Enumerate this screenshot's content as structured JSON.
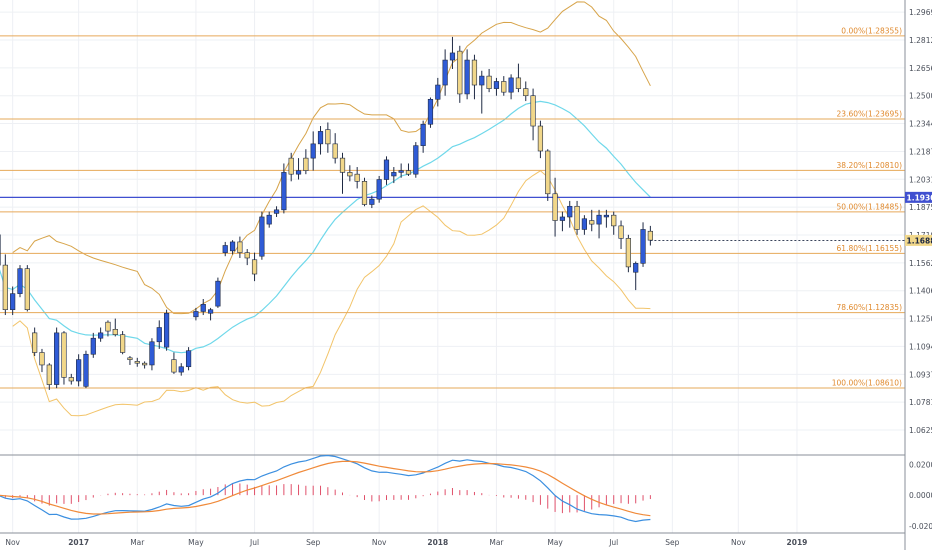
{
  "chart_data": {
    "type": "candlestick",
    "title": "",
    "xlabel": "",
    "ylabel": "",
    "ylim": [
      1.0485,
      1.2992
    ],
    "price_ticks": [
      "1.29690",
      "1.28125",
      "1.26565",
      "1.25000",
      "1.23440",
      "1.21875",
      "1.20315",
      "1.18750",
      "1.17190",
      "1.15625",
      "1.14065",
      "1.12500",
      "1.10940",
      "1.09375",
      "1.07815",
      "1.06250"
    ],
    "time_labels": [
      {
        "label": "Nov",
        "week": 2
      },
      {
        "label": "2017",
        "week": 11
      },
      {
        "label": "Mar",
        "week": 19
      },
      {
        "label": "May",
        "week": 27
      },
      {
        "label": "Jul",
        "week": 35
      },
      {
        "label": "Sep",
        "week": 43
      },
      {
        "label": "Nov",
        "week": 52
      },
      {
        "label": "2018",
        "week": 60
      },
      {
        "label": "Mar",
        "week": 68
      },
      {
        "label": "May",
        "week": 76
      },
      {
        "label": "Jul",
        "week": 84
      },
      {
        "label": "Sep",
        "week": 92
      },
      {
        "label": "Nov",
        "week": 101
      },
      {
        "label": "2019",
        "week": 109
      }
    ],
    "fib_levels": [
      {
        "label": "0.00%(1.28355)",
        "value": 1.28355
      },
      {
        "label": "23.60%(1.23695)",
        "value": 1.23695
      },
      {
        "label": "38.20%(1.20810)",
        "value": 1.2081
      },
      {
        "label": "50.00%(1.18485)",
        "value": 1.18485
      },
      {
        "label": "61.80%(1.16155)",
        "value": 1.16155
      },
      {
        "label": "78.60%(1.12835)",
        "value": 1.12835
      },
      {
        "label": "100.00%(1.08610)",
        "value": 1.0861
      }
    ],
    "horizontal_line": {
      "value": 1.193,
      "label": "1.19300"
    },
    "last_price": {
      "value": 1.16885,
      "label": "1.16885"
    },
    "candles": [
      [
        1.172,
        1.176,
        1.145,
        1.155
      ],
      [
        1.155,
        1.161,
        1.127,
        1.13
      ],
      [
        1.13,
        1.143,
        1.127,
        1.139
      ],
      [
        1.139,
        1.155,
        1.137,
        1.153
      ],
      [
        1.153,
        1.155,
        1.129,
        1.13
      ],
      [
        1.117,
        1.12,
        1.104,
        1.106
      ],
      [
        1.106,
        1.108,
        1.095,
        1.099
      ],
      [
        1.099,
        1.1,
        1.085,
        1.088
      ],
      [
        1.088,
        1.12,
        1.086,
        1.117
      ],
      [
        1.117,
        1.118,
        1.088,
        1.092
      ],
      [
        1.092,
        1.094,
        1.088,
        1.09
      ],
      [
        1.09,
        1.105,
        1.087,
        1.102
      ],
      [
        1.087,
        1.107,
        1.086,
        1.105
      ],
      [
        1.105,
        1.117,
        1.103,
        1.114
      ],
      [
        1.114,
        1.12,
        1.112,
        1.117
      ],
      [
        1.123,
        1.124,
        1.115,
        1.118
      ],
      [
        1.119,
        1.125,
        1.115,
        1.116
      ],
      [
        1.116,
        1.118,
        1.105,
        1.106
      ],
      [
        1.103,
        1.104,
        1.099,
        1.102
      ],
      [
        1.101,
        1.103,
        1.098,
        1.1
      ],
      [
        1.1,
        1.101,
        1.097,
        1.099
      ],
      [
        1.099,
        1.114,
        1.096,
        1.112
      ],
      [
        1.112,
        1.124,
        1.108,
        1.12
      ],
      [
        1.109,
        1.13,
        1.107,
        1.128
      ],
      [
        1.102,
        1.106,
        1.094,
        1.095
      ],
      [
        1.095,
        1.1,
        1.093,
        1.098
      ],
      [
        1.098,
        1.109,
        1.096,
        1.107
      ],
      [
        1.126,
        1.131,
        1.124,
        1.129
      ],
      [
        1.129,
        1.136,
        1.127,
        1.133
      ],
      [
        1.128,
        1.131,
        1.124,
        1.13
      ],
      [
        1.132,
        1.148,
        1.131,
        1.146
      ],
      [
        1.162,
        1.168,
        1.16,
        1.166
      ],
      [
        1.163,
        1.169,
        1.161,
        1.168
      ],
      [
        1.168,
        1.171,
        1.159,
        1.162
      ],
      [
        1.162,
        1.164,
        1.155,
        1.159
      ],
      [
        1.158,
        1.162,
        1.146,
        1.15
      ],
      [
        1.16,
        1.185,
        1.158,
        1.182
      ],
      [
        1.178,
        1.185,
        1.176,
        1.183
      ],
      [
        1.184,
        1.188,
        1.182,
        1.186
      ],
      [
        1.186,
        1.212,
        1.184,
        1.207
      ],
      [
        1.215,
        1.218,
        1.202,
        1.206
      ],
      [
        1.206,
        1.215,
        1.203,
        1.208
      ],
      [
        1.215,
        1.22,
        1.206,
        1.208
      ],
      [
        1.215,
        1.23,
        1.208,
        1.223
      ],
      [
        1.223,
        1.233,
        1.217,
        1.23
      ],
      [
        1.231,
        1.235,
        1.218,
        1.223
      ],
      [
        1.223,
        1.229,
        1.212,
        1.215
      ],
      [
        1.215,
        1.218,
        1.195,
        1.207
      ],
      [
        1.207,
        1.211,
        1.202,
        1.205
      ],
      [
        1.206,
        1.21,
        1.198,
        1.202
      ],
      [
        1.202,
        1.204,
        1.188,
        1.189
      ],
      [
        1.189,
        1.194,
        1.187,
        1.192
      ],
      [
        1.192,
        1.205,
        1.19,
        1.203
      ],
      [
        1.203,
        1.216,
        1.2,
        1.214
      ],
      [
        1.205,
        1.21,
        1.201,
        1.207
      ],
      [
        1.207,
        1.212,
        1.204,
        1.208
      ],
      [
        1.208,
        1.212,
        1.205,
        1.206
      ],
      [
        1.206,
        1.224,
        1.204,
        1.222
      ],
      [
        1.222,
        1.236,
        1.218,
        1.234
      ],
      [
        1.234,
        1.249,
        1.232,
        1.248
      ],
      [
        1.248,
        1.26,
        1.244,
        1.256
      ],
      [
        1.256,
        1.276,
        1.25,
        1.27
      ],
      [
        1.27,
        1.283,
        1.265,
        1.274
      ],
      [
        1.275,
        1.278,
        1.246,
        1.251
      ],
      [
        1.251,
        1.276,
        1.248,
        1.27
      ],
      [
        1.27,
        1.273,
        1.248,
        1.256
      ],
      [
        1.256,
        1.264,
        1.24,
        1.261
      ],
      [
        1.261,
        1.265,
        1.252,
        1.254
      ],
      [
        1.254,
        1.26,
        1.25,
        1.258
      ],
      [
        1.258,
        1.261,
        1.25,
        1.252
      ],
      [
        1.252,
        1.262,
        1.248,
        1.26
      ],
      [
        1.26,
        1.268,
        1.252,
        1.254
      ],
      [
        1.254,
        1.258,
        1.247,
        1.25
      ],
      [
        1.25,
        1.254,
        1.225,
        1.233
      ],
      [
        1.233,
        1.236,
        1.215,
        1.219
      ],
      [
        1.219,
        1.22,
        1.191,
        1.195
      ],
      [
        1.195,
        1.204,
        1.171,
        1.18
      ],
      [
        1.18,
        1.185,
        1.174,
        1.182
      ],
      [
        1.182,
        1.191,
        1.176,
        1.188
      ],
      [
        1.188,
        1.191,
        1.172,
        1.175
      ],
      [
        1.175,
        1.183,
        1.172,
        1.181
      ],
      [
        1.18,
        1.186,
        1.174,
        1.178
      ],
      [
        1.178,
        1.186,
        1.17,
        1.183
      ],
      [
        1.182,
        1.186,
        1.176,
        1.183
      ],
      [
        1.183,
        1.185,
        1.172,
        1.177
      ],
      [
        1.177,
        1.18,
        1.164,
        1.17
      ],
      [
        1.17,
        1.172,
        1.151,
        1.154
      ],
      [
        1.151,
        1.157,
        1.141,
        1.156
      ],
      [
        1.156,
        1.179,
        1.154,
        1.175
      ],
      [
        1.174,
        1.177,
        1.166,
        1.169
      ]
    ],
    "osc_ticks": [
      "0.0200",
      "0.0000",
      "-0.0200"
    ],
    "osc_ylim": [
      -0.0245,
      0.026
    ]
  }
}
